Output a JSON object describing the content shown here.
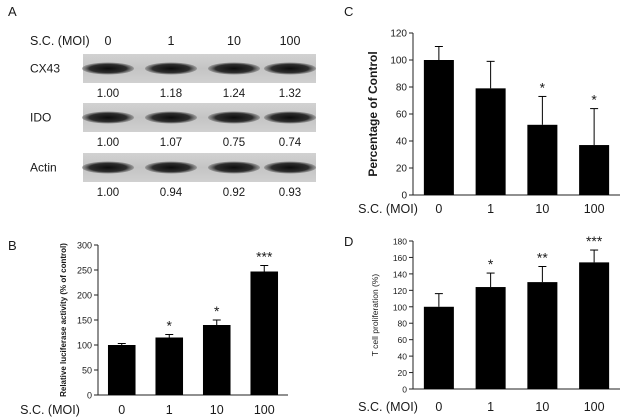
{
  "figure": {
    "panel_a": {
      "label": "A",
      "condition_label": "S.C. (MOI)",
      "lanes": [
        "0",
        "1",
        "10",
        "100"
      ],
      "blots": [
        {
          "name": "CX43",
          "values": [
            "1.00",
            "1.18",
            "1.24",
            "1.32"
          ]
        },
        {
          "name": "IDO",
          "values": [
            "1.00",
            "1.07",
            "0.75",
            "0.74"
          ]
        },
        {
          "name": "Actin",
          "values": [
            "1.00",
            "0.94",
            "0.92",
            "0.93"
          ]
        }
      ]
    }
  },
  "chart_data": [
    {
      "panel": "B",
      "type": "bar",
      "categories": [
        "0",
        "1",
        "10",
        "100"
      ],
      "values": [
        100,
        115,
        140,
        247
      ],
      "errors": [
        3,
        6,
        10,
        12
      ],
      "significance": [
        "",
        "*",
        "*",
        "***"
      ],
      "xlabel": "S.C. (MOI)",
      "ylabel": "Relative luciferase activity (% of control)",
      "ylim": [
        0,
        300
      ],
      "yticks": [
        "0",
        "50",
        "100",
        "150",
        "200",
        "250",
        "300"
      ]
    },
    {
      "panel": "C",
      "type": "bar",
      "categories": [
        "0",
        "1",
        "10",
        "100"
      ],
      "values": [
        100,
        79,
        52,
        37
      ],
      "errors": [
        10,
        20,
        21,
        27
      ],
      "significance": [
        "",
        "",
        "*",
        "*"
      ],
      "xlabel": "S.C. (MOI)",
      "ylabel": "Percentage of Control",
      "ylim": [
        0,
        120
      ],
      "yticks": [
        "0",
        "20",
        "40",
        "60",
        "80",
        "100",
        "120"
      ]
    },
    {
      "panel": "D",
      "type": "bar",
      "categories": [
        "0",
        "1",
        "10",
        "100"
      ],
      "values": [
        100,
        124,
        130,
        154
      ],
      "errors": [
        16,
        17,
        19,
        15
      ],
      "significance": [
        "",
        "*",
        "**",
        "***"
      ],
      "xlabel": "S.C. (MOI)",
      "ylabel": "T cell proliferation (%)",
      "ylim": [
        0,
        180
      ],
      "yticks": [
        "0",
        "20",
        "40",
        "60",
        "80",
        "100",
        "120",
        "140",
        "160",
        "180"
      ]
    }
  ]
}
